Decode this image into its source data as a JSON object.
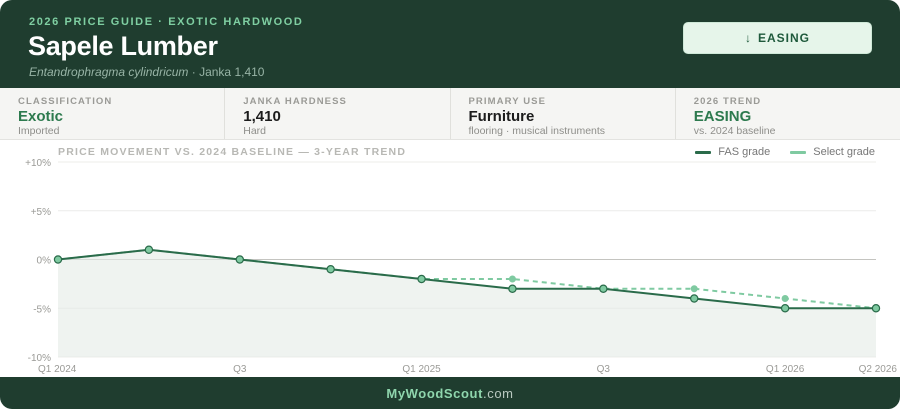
{
  "header": {
    "eyebrow": "2026 PRICE GUIDE · EXOTIC HARDWOOD",
    "title": "Sapele Lumber",
    "scientific_name": "Entandrophragma cylindricum",
    "subtitle_rest": " · Janka 1,410",
    "trend_badge": "EASING",
    "trend_arrow": "↓"
  },
  "stats": [
    {
      "label": "CLASSIFICATION",
      "value": "Exotic",
      "sub": "Imported",
      "highlight": true
    },
    {
      "label": "JANKA HARDNESS",
      "value": "1,410",
      "sub": "Hard",
      "highlight": false
    },
    {
      "label": "PRIMARY USE",
      "value": "Furniture",
      "sub": "flooring · musical instruments",
      "highlight": false
    },
    {
      "label": "2026 TREND",
      "value": "EASING",
      "sub": "vs. 2024 baseline",
      "highlight": true
    }
  ],
  "chart_data": {
    "type": "line",
    "title": "PRICE MOVEMENT VS. 2024 BASELINE — 3-YEAR TREND",
    "x_tick_labels": [
      "Q1 2024",
      "Q3",
      "Q1 2025",
      "Q3",
      "Q1 2026",
      "Q2 2026"
    ],
    "x_tick_index": [
      0,
      2,
      4,
      6,
      8,
      9
    ],
    "y_ticks": [
      "+10%",
      "+5%",
      "0%",
      "-5%",
      "-10%"
    ],
    "y_tick_values": [
      10,
      5,
      0,
      -5,
      -10
    ],
    "ylim": [
      -10,
      10
    ],
    "grid": true,
    "legend_position": "top-right",
    "series": [
      {
        "name": "FAS grade",
        "color": "#2a6b4a",
        "style": "solid",
        "values": [
          0,
          1,
          0,
          -1,
          -2,
          -3,
          -3,
          -4,
          -5,
          -5
        ]
      },
      {
        "name": "Select grade",
        "color": "#7fcaa1",
        "style": "dashed",
        "values": [
          0,
          1,
          0,
          -1,
          -2,
          -2,
          -3,
          -3,
          -4,
          -5
        ]
      }
    ]
  },
  "footer": {
    "brand": "MyWoodScout",
    "tld": ".com"
  }
}
